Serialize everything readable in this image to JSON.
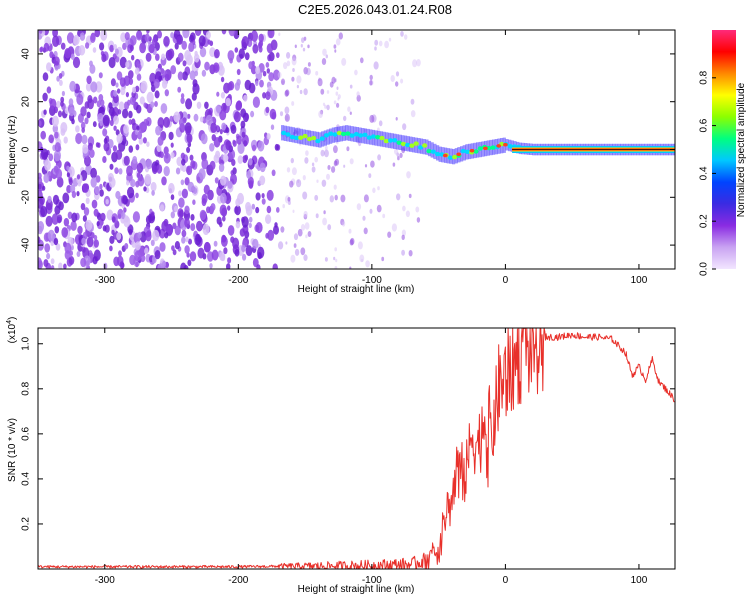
{
  "title": "C2E5.2026.043.01.24.R08",
  "colors": {
    "frame": "#000000",
    "snr_line": "#e8302a",
    "ridge_core": "#ff1a00",
    "spectrogram_noise": "#7b2fd8",
    "colorbar_stops": [
      "#f2e6ff",
      "#c9a3f2",
      "#8a2be2",
      "#3b2be2",
      "#0044ff",
      "#00c8ff",
      "#00ff80",
      "#8cff00",
      "#ffff00",
      "#ff8800",
      "#ff0000",
      "#ff2a7a"
    ]
  },
  "chart_data": [
    {
      "type": "heatmap",
      "name": "spectrogram",
      "xlabel": "Height of straight line (km)",
      "ylabel": "Frequency (Hz)",
      "xlim": [
        -350,
        127
      ],
      "ylim": [
        -50,
        50
      ],
      "xticks": [
        -300,
        -200,
        -100,
        0,
        100
      ],
      "xtick_labels": [
        "-300",
        "-200",
        "-100",
        "0",
        "100"
      ],
      "yticks": [
        -40,
        -20,
        0,
        20,
        40
      ],
      "ytick_labels": [
        "-40",
        "-20",
        "0",
        "20",
        "40"
      ],
      "ridge": {
        "x": [
          -168,
          -150,
          -140,
          -130,
          -120,
          -110,
          -100,
          -90,
          -80,
          -70,
          -60,
          -50,
          -40,
          -30,
          -20,
          -10,
          0,
          10,
          20,
          60,
          127
        ],
        "y": [
          7,
          5,
          4,
          6,
          7,
          6,
          5,
          4,
          3,
          2,
          1,
          -2,
          -3,
          -1,
          0,
          1,
          2,
          0.5,
          0,
          0,
          0
        ]
      },
      "noise_extent_x": [
        -350,
        -80
      ],
      "colorbar": {
        "label": "Normalized spectral amplitude",
        "range": [
          0,
          1
        ],
        "ticks": [
          0.0,
          0.2,
          0.4,
          0.6,
          0.8
        ],
        "tick_labels": [
          "0.0",
          "0.2",
          "0.4",
          "0.6",
          "0.8"
        ]
      }
    },
    {
      "type": "line",
      "name": "snr",
      "xlabel": "Height of straight line (km)",
      "ylabel": "SNR (10 * v/v)",
      "y_multiplier": "(x10",
      "y_multiplier_exp": "4",
      "y_multiplier_close": ")",
      "xlim": [
        -350,
        127
      ],
      "ylim": [
        0,
        1.07
      ],
      "xticks": [
        -300,
        -200,
        -100,
        0,
        100
      ],
      "xtick_labels": [
        "-300",
        "-200",
        "-100",
        "0",
        "100"
      ],
      "yticks": [
        0.2,
        0.4,
        0.6,
        0.8,
        1.0
      ],
      "ytick_labels": [
        "0.2",
        "0.4",
        "0.6",
        "0.8",
        "1.0"
      ],
      "envelope": {
        "x": [
          -350,
          -200,
          -170,
          -100,
          -70,
          -55,
          -48,
          -45,
          -40,
          -35,
          -30,
          -25,
          -20,
          -15,
          -10,
          -5,
          0,
          5,
          10,
          20,
          30,
          40,
          50,
          60,
          70,
          80,
          90,
          95,
          100,
          105,
          110,
          115,
          120,
          127
        ],
        "y": [
          0.01,
          0.01,
          0.012,
          0.015,
          0.02,
          0.05,
          0.12,
          0.25,
          0.3,
          0.5,
          0.4,
          0.6,
          0.55,
          0.7,
          0.6,
          0.8,
          0.85,
          0.9,
          0.95,
          1.0,
          1.03,
          1.03,
          1.04,
          1.03,
          1.03,
          1.02,
          0.96,
          0.86,
          0.9,
          0.84,
          0.93,
          0.83,
          0.8,
          0.75
        ]
      }
    }
  ]
}
